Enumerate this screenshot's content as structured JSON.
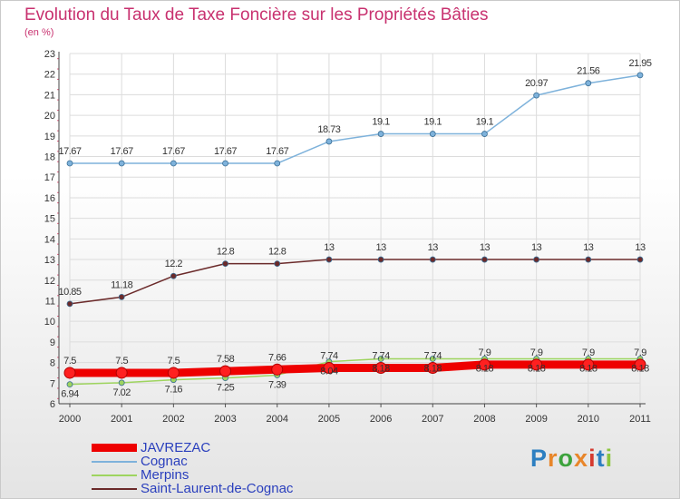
{
  "logo_text": "Proxiti",
  "logo_colors": [
    "#2d7fc1",
    "#e8862a",
    "#3da33d",
    "#e8862a",
    "#d53a2f",
    "#2d7fc1",
    "#8cc63f"
  ],
  "chart_data": {
    "type": "line",
    "title": "Evolution du Taux de Taxe Foncière sur les Propriétés Bâties",
    "unit": "(en %)",
    "xlabel": "",
    "ylabel": "",
    "categories": [
      "2000",
      "2001",
      "2002",
      "2003",
      "2004",
      "2005",
      "2006",
      "2007",
      "2008",
      "2009",
      "2010",
      "2011"
    ],
    "ylim": [
      6,
      23
    ],
    "yticks": [
      6,
      7,
      8,
      9,
      10,
      11,
      12,
      13,
      14,
      15,
      16,
      17,
      18,
      19,
      20,
      21,
      22,
      23
    ],
    "grid": true,
    "legend_position": "bottom-left",
    "series": [
      {
        "name": "JAVREZAC",
        "color": "#ee0000",
        "values": [
          7.5,
          7.5,
          7.5,
          7.58,
          7.66,
          7.74,
          7.74,
          7.74,
          7.9,
          7.9,
          7.9,
          7.9
        ],
        "labels": [
          "7.5",
          "7.5",
          "7.5",
          "7.58",
          "7.66",
          "7.74",
          "7.74",
          "7.74",
          "7.9",
          "7.9",
          "7.9",
          "7.9"
        ]
      },
      {
        "name": "Cognac",
        "color": "#7eb2db",
        "values": [
          17.67,
          17.67,
          17.67,
          17.67,
          17.67,
          18.73,
          19.1,
          19.1,
          19.1,
          20.97,
          21.56,
          21.95
        ],
        "labels": [
          "17.67",
          "17.67",
          "17.67",
          "17.67",
          "17.67",
          "18.73",
          "19.1",
          "19.1",
          "19.1",
          "20.97",
          "21.56",
          "21.95"
        ]
      },
      {
        "name": "Merpins",
        "color": "#9ed45f",
        "values": [
          6.94,
          7.02,
          7.16,
          7.25,
          7.39,
          8.04,
          8.18,
          8.18,
          8.18,
          8.18,
          8.18,
          8.18
        ],
        "labels": [
          "6.94",
          "7.02",
          "7.16",
          "7.25",
          "7.39",
          "8.04",
          "8.18",
          "8.18",
          "8.18",
          "8.18",
          "8.18",
          "8.18"
        ]
      },
      {
        "name": "Saint-Laurent-de-Cognac",
        "color": "#6b2a2a",
        "values": [
          10.85,
          11.18,
          12.2,
          12.8,
          12.8,
          13,
          13,
          13,
          13,
          13,
          13,
          13
        ],
        "labels": [
          "10.85",
          "11.18",
          "12.2",
          "12.8",
          "12.8",
          "13",
          "13",
          "13",
          "13",
          "13",
          "13",
          "13"
        ]
      }
    ]
  }
}
